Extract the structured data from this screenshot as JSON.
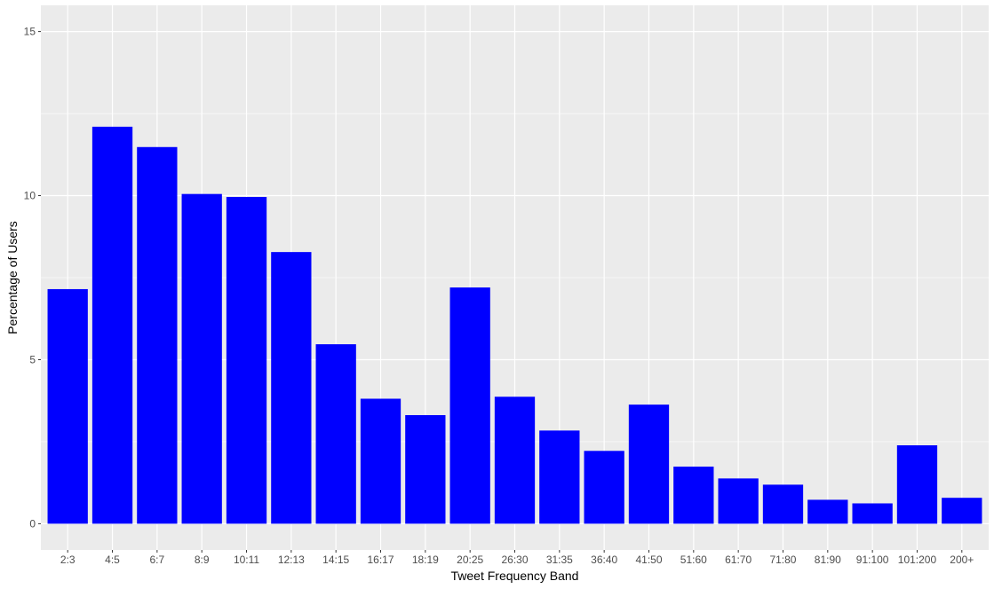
{
  "chart_data": {
    "type": "bar",
    "xlabel": "Tweet Frequency Band",
    "ylabel": "Percentage of Users",
    "categories": [
      "2:3",
      "4:5",
      "6:7",
      "8:9",
      "10:11",
      "12:13",
      "14:15",
      "16:17",
      "18:19",
      "20:25",
      "26:30",
      "31:35",
      "36:40",
      "41:50",
      "51:60",
      "61:70",
      "71:80",
      "81:90",
      "91:100",
      "101:200",
      "200+"
    ],
    "values": [
      7.15,
      12.1,
      11.48,
      10.05,
      9.96,
      8.28,
      5.47,
      3.81,
      3.31,
      7.2,
      3.87,
      2.84,
      2.22,
      3.63,
      1.74,
      1.38,
      1.19,
      0.73,
      0.62,
      2.39,
      0.79
    ],
    "ylim": [
      -0.8,
      15.8
    ],
    "yticks": [
      0,
      5,
      10,
      15
    ],
    "grid": true,
    "bar_color": "#0000ff",
    "panel_color": "#ebebeb",
    "grid_color": "#ffffff"
  }
}
